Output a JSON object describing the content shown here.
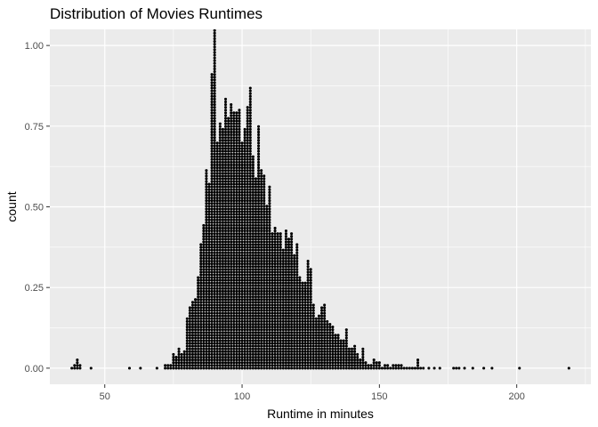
{
  "chart_data": {
    "type": "dotplot",
    "title": "Distribution of Movies Runtimes",
    "xlabel": "Runtime in minutes",
    "ylabel": "count",
    "xlim": [
      30,
      227
    ],
    "ylim": [
      -0.05,
      1.05
    ],
    "x_ticks": [
      50,
      100,
      150,
      200
    ],
    "y_ticks": [
      0.0,
      0.25,
      0.5,
      0.75,
      1.0
    ],
    "y_tick_labels": [
      "0.00",
      "0.25",
      "0.50",
      "0.75",
      "1.00"
    ],
    "grid": true,
    "panel_color": "#ebebeb",
    "grid_color": "#ffffff",
    "dot_color": "#000000",
    "bin_width_minutes": 1,
    "stacks": [
      {
        "x": 38,
        "count": 1
      },
      {
        "x": 39,
        "count": 2
      },
      {
        "x": 40,
        "count": 4
      },
      {
        "x": 41,
        "count": 2
      },
      {
        "x": 45,
        "count": 1
      },
      {
        "x": 59,
        "count": 1
      },
      {
        "x": 63,
        "count": 1
      },
      {
        "x": 69,
        "count": 1
      },
      {
        "x": 72,
        "count": 2
      },
      {
        "x": 73,
        "count": 2
      },
      {
        "x": 74,
        "count": 2
      },
      {
        "x": 75,
        "count": 6
      },
      {
        "x": 76,
        "count": 5
      },
      {
        "x": 77,
        "count": 8
      },
      {
        "x": 78,
        "count": 6
      },
      {
        "x": 79,
        "count": 7
      },
      {
        "x": 80,
        "count": 19
      },
      {
        "x": 81,
        "count": 23
      },
      {
        "x": 82,
        "count": 25
      },
      {
        "x": 83,
        "count": 26
      },
      {
        "x": 84,
        "count": 34
      },
      {
        "x": 85,
        "count": 46
      },
      {
        "x": 86,
        "count": 53
      },
      {
        "x": 87,
        "count": 73
      },
      {
        "x": 88,
        "count": 68
      },
      {
        "x": 89,
        "count": 108
      },
      {
        "x": 90,
        "count": 124
      },
      {
        "x": 91,
        "count": 83
      },
      {
        "x": 92,
        "count": 90
      },
      {
        "x": 93,
        "count": 88
      },
      {
        "x": 94,
        "count": 99
      },
      {
        "x": 95,
        "count": 92
      },
      {
        "x": 96,
        "count": 97
      },
      {
        "x": 97,
        "count": 94
      },
      {
        "x": 98,
        "count": 94
      },
      {
        "x": 99,
        "count": 95
      },
      {
        "x": 100,
        "count": 83
      },
      {
        "x": 101,
        "count": 88
      },
      {
        "x": 102,
        "count": 96
      },
      {
        "x": 103,
        "count": 103
      },
      {
        "x": 104,
        "count": 78
      },
      {
        "x": 105,
        "count": 70
      },
      {
        "x": 106,
        "count": 89
      },
      {
        "x": 107,
        "count": 73
      },
      {
        "x": 108,
        "count": 71
      },
      {
        "x": 109,
        "count": 60
      },
      {
        "x": 110,
        "count": 67
      },
      {
        "x": 111,
        "count": 50
      },
      {
        "x": 112,
        "count": 52
      },
      {
        "x": 113,
        "count": 50
      },
      {
        "x": 114,
        "count": 50
      },
      {
        "x": 115,
        "count": 44
      },
      {
        "x": 116,
        "count": 51
      },
      {
        "x": 117,
        "count": 48
      },
      {
        "x": 118,
        "count": 50
      },
      {
        "x": 119,
        "count": 42
      },
      {
        "x": 120,
        "count": 46
      },
      {
        "x": 121,
        "count": 34
      },
      {
        "x": 122,
        "count": 32
      },
      {
        "x": 123,
        "count": 32
      },
      {
        "x": 124,
        "count": 40
      },
      {
        "x": 125,
        "count": 37
      },
      {
        "x": 126,
        "count": 24
      },
      {
        "x": 127,
        "count": 19
      },
      {
        "x": 128,
        "count": 20
      },
      {
        "x": 129,
        "count": 23
      },
      {
        "x": 130,
        "count": 24
      },
      {
        "x": 131,
        "count": 18
      },
      {
        "x": 132,
        "count": 17
      },
      {
        "x": 133,
        "count": 16
      },
      {
        "x": 134,
        "count": 13
      },
      {
        "x": 135,
        "count": 13
      },
      {
        "x": 136,
        "count": 11
      },
      {
        "x": 137,
        "count": 11
      },
      {
        "x": 138,
        "count": 15
      },
      {
        "x": 139,
        "count": 8
      },
      {
        "x": 140,
        "count": 8
      },
      {
        "x": 141,
        "count": 9
      },
      {
        "x": 142,
        "count": 6
      },
      {
        "x": 143,
        "count": 4
      },
      {
        "x": 144,
        "count": 8
      },
      {
        "x": 145,
        "count": 3
      },
      {
        "x": 146,
        "count": 2
      },
      {
        "x": 147,
        "count": 2
      },
      {
        "x": 148,
        "count": 4
      },
      {
        "x": 149,
        "count": 3
      },
      {
        "x": 150,
        "count": 3
      },
      {
        "x": 151,
        "count": 1
      },
      {
        "x": 152,
        "count": 2
      },
      {
        "x": 153,
        "count": 2
      },
      {
        "x": 154,
        "count": 1
      },
      {
        "x": 155,
        "count": 2
      },
      {
        "x": 156,
        "count": 2
      },
      {
        "x": 157,
        "count": 2
      },
      {
        "x": 158,
        "count": 2
      },
      {
        "x": 159,
        "count": 1
      },
      {
        "x": 160,
        "count": 1
      },
      {
        "x": 161,
        "count": 1
      },
      {
        "x": 162,
        "count": 1
      },
      {
        "x": 163,
        "count": 1
      },
      {
        "x": 164,
        "count": 4
      },
      {
        "x": 165,
        "count": 1
      },
      {
        "x": 166,
        "count": 1
      },
      {
        "x": 168,
        "count": 1
      },
      {
        "x": 170,
        "count": 1
      },
      {
        "x": 172,
        "count": 1
      },
      {
        "x": 177,
        "count": 1
      },
      {
        "x": 178,
        "count": 1
      },
      {
        "x": 179,
        "count": 1
      },
      {
        "x": 181,
        "count": 1
      },
      {
        "x": 184,
        "count": 1
      },
      {
        "x": 188,
        "count": 1
      },
      {
        "x": 191,
        "count": 1
      },
      {
        "x": 201,
        "count": 1
      },
      {
        "x": 219,
        "count": 1
      }
    ]
  }
}
